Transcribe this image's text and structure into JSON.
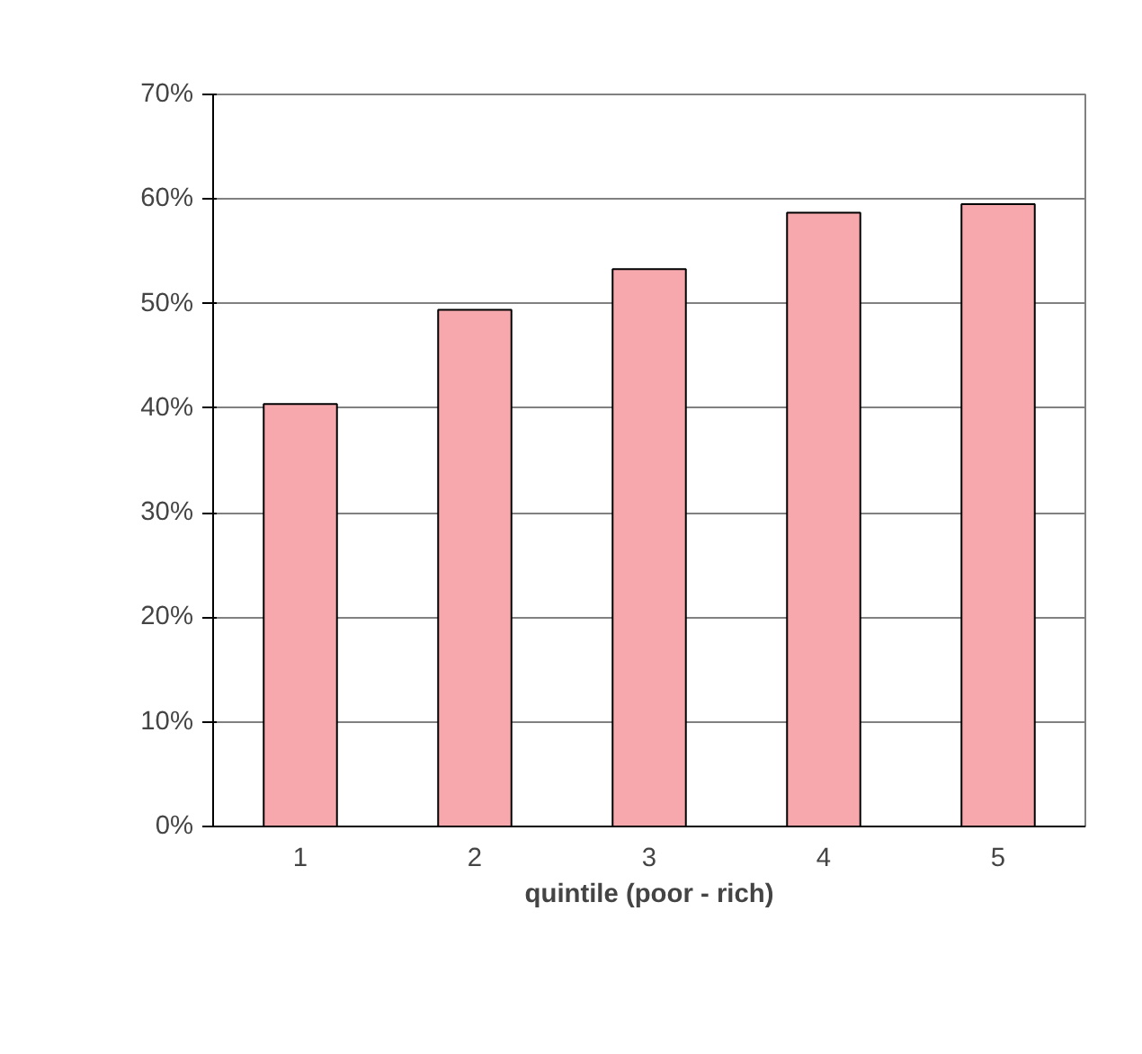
{
  "chart_data": {
    "type": "bar",
    "xlabel": "quintile (poor - rich)",
    "categories": [
      "1",
      "2",
      "3",
      "4",
      "5"
    ],
    "values": [
      40.4,
      49.4,
      53.3,
      58.7,
      59.5
    ],
    "color": "#f7a8ad",
    "ylim": [
      0,
      70
    ],
    "yticks": [
      {
        "value": 0,
        "label": "0%"
      },
      {
        "value": 10,
        "label": "10%"
      },
      {
        "value": 20,
        "label": "20%"
      },
      {
        "value": 30,
        "label": "30%"
      },
      {
        "value": 40,
        "label": "40%"
      },
      {
        "value": 50,
        "label": "50%"
      },
      {
        "value": 60,
        "label": "60%"
      },
      {
        "value": 70,
        "label": "70%"
      }
    ],
    "grid": "y"
  }
}
